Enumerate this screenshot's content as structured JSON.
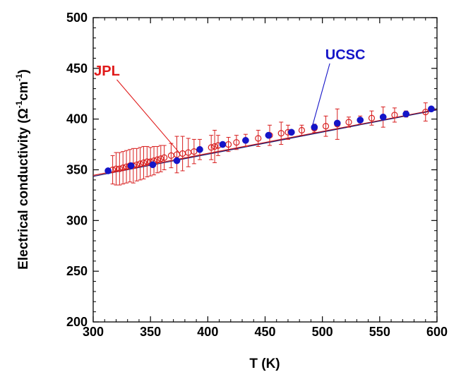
{
  "chart_data": {
    "type": "scatter",
    "xlabel": "T (K)",
    "ylabel": {
      "prefix": "Electrical conductivity (",
      "omega": "Ω",
      "sup1": "-1",
      "unit": "cm",
      "sup2": "-1",
      "suffix": ")"
    },
    "xlim": [
      300,
      600
    ],
    "ylim": [
      200,
      500
    ],
    "x_ticks": [
      300,
      350,
      400,
      450,
      500,
      550,
      600
    ],
    "y_ticks": [
      200,
      250,
      300,
      350,
      400,
      450,
      500
    ],
    "grid": false,
    "series": [
      {
        "name": "JPL",
        "marker": "open-circle",
        "color": "#d81e1e",
        "x": [
          317,
          320,
          323,
          326,
          329,
          332,
          335,
          338,
          341,
          344,
          347,
          350,
          353,
          356,
          359,
          362,
          368,
          373,
          378,
          383,
          388,
          393,
          403,
          406,
          409,
          418,
          425,
          433,
          444,
          454,
          464,
          470,
          482,
          493,
          503,
          513,
          523,
          533,
          543,
          553,
          563,
          573,
          590
        ],
        "y": [
          350,
          351,
          351,
          352,
          353,
          354,
          354,
          355,
          356,
          357,
          358,
          358,
          359,
          360,
          361,
          362,
          364,
          365,
          366,
          367,
          368,
          370,
          372,
          373,
          374,
          375,
          377,
          379,
          381,
          384,
          386,
          387,
          389,
          391,
          393,
          395,
          397,
          399,
          401,
          402,
          404,
          405,
          407
        ],
        "err": [
          14,
          16,
          16,
          16,
          16,
          16,
          17,
          16,
          16,
          16,
          15,
          14,
          14,
          13,
          13,
          12,
          12,
          18,
          17,
          14,
          12,
          10,
          12,
          16,
          10,
          7,
          7,
          6,
          8,
          10,
          11,
          7,
          5,
          4,
          10,
          15,
          5,
          4,
          7,
          10,
          7,
          3,
          9
        ]
      },
      {
        "name": "UCSC",
        "marker": "filled-circle",
        "color": "#1515c8",
        "x": [
          313,
          333,
          352,
          373,
          393,
          413,
          433,
          453,
          473,
          493,
          513,
          533,
          553,
          573,
          595
        ],
        "y": [
          349,
          354,
          355,
          359,
          370,
          375,
          379,
          384,
          387,
          392,
          396,
          399,
          402,
          405,
          410
        ]
      }
    ],
    "fit_lines": [
      {
        "color": "#d81e1e",
        "x": [
          300,
          600
        ],
        "y": [
          344.5,
          409.5
        ]
      },
      {
        "color": "#1a1a6e",
        "x": [
          300,
          600
        ],
        "y": [
          343.5,
          409
        ]
      }
    ],
    "annotations": [
      {
        "text": "JPL",
        "color": "#e01a1a",
        "x": 312,
        "y": 443,
        "arrow_to": [
          375,
          367
        ]
      },
      {
        "text": "UCSC",
        "color": "#1515c8",
        "x": 520,
        "y": 459,
        "arrow_to": [
          491,
          392
        ]
      }
    ]
  }
}
